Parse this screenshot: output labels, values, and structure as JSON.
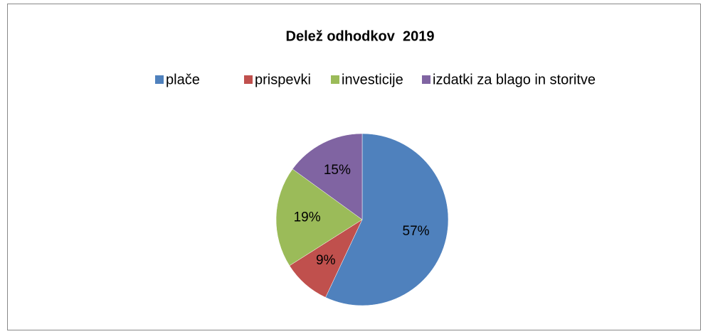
{
  "chart_data": {
    "type": "pie",
    "title": "Delež odhodkov  2019",
    "categories": [
      "plače",
      "prispevki",
      "investicije",
      "izdatki za blago in storitve"
    ],
    "values": [
      57,
      9,
      19,
      15
    ],
    "value_labels": [
      "57%",
      "9%",
      "19%",
      "15%"
    ],
    "colors": [
      "#4f81bd",
      "#c0504d",
      "#9bbb59",
      "#8064a2"
    ],
    "legend": "top"
  }
}
